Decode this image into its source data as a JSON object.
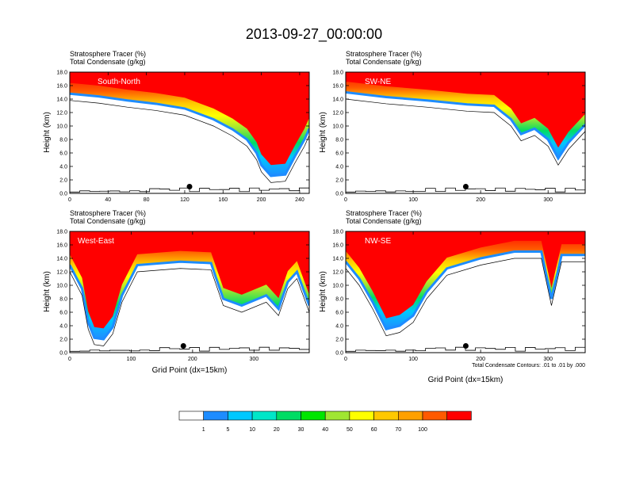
{
  "title": "2013-09-27_00:00:00",
  "colors": {
    "bins": [
      "#ffffff",
      "#1e8cff",
      "#00c8ff",
      "#00e6c8",
      "#00dc64",
      "#00e600",
      "#a0e632",
      "#ffff00",
      "#ffc800",
      "#ffa000",
      "#ff5a00",
      "#ff0000"
    ],
    "contour": "#000000",
    "marker": "#000000"
  },
  "colorbar": {
    "labels": [
      "1",
      "5",
      "10",
      "20",
      "30",
      "40",
      "50",
      "60",
      "70",
      "100"
    ]
  },
  "note": "Total Condensate Contours: .01 to .01 by .000",
  "chart_data": [
    {
      "type": "contour-cross-section",
      "panel_label": "South-North",
      "subtitle_lines": [
        "Stratosphere Tracer   (%)",
        "Total Condensate   (g/kg)"
      ],
      "ylabel": "Height (km)",
      "xlabel": "",
      "ylim": [
        0,
        18
      ],
      "xlim": [
        0,
        250
      ],
      "xticks": [
        "0",
        "40",
        "80",
        "120",
        "160",
        "200",
        "240"
      ],
      "xtick_values": [
        0,
        40,
        80,
        120,
        160,
        200,
        240
      ],
      "yticks": [
        "0.0",
        "2.0",
        "4.0",
        "6.0",
        "8.0",
        "10.0",
        "12.0",
        "14.0",
        "16.0",
        "18.0"
      ],
      "tracer_lower_boundary_km": [
        [
          0,
          14.8
        ],
        [
          30,
          14.4
        ],
        [
          60,
          13.8
        ],
        [
          90,
          13.3
        ],
        [
          120,
          12.6
        ],
        [
          150,
          11.0
        ],
        [
          170,
          9.5
        ],
        [
          185,
          8.0
        ],
        [
          195,
          6.0
        ],
        [
          200,
          4.2
        ],
        [
          210,
          2.6
        ],
        [
          225,
          2.8
        ],
        [
          235,
          5.5
        ],
        [
          245,
          8.0
        ],
        [
          250,
          9.6
        ]
      ],
      "marker": {
        "x": 125,
        "y_km": 1.0
      }
    },
    {
      "type": "contour-cross-section",
      "panel_label": "SW-NE",
      "subtitle_lines": [
        "Stratosphere Tracer   (%)",
        "Total Condensate   (g/kg)"
      ],
      "ylabel": "Height (km)",
      "xlabel": "",
      "ylim": [
        0,
        18
      ],
      "xlim": [
        0,
        355
      ],
      "xticks": [
        "0",
        "100",
        "200",
        "300"
      ],
      "xtick_values": [
        0,
        100,
        200,
        300
      ],
      "yticks": [
        "0.0",
        "2.0",
        "4.0",
        "6.0",
        "8.0",
        "10.0",
        "12.0",
        "14.0",
        "16.0",
        "18.0"
      ],
      "tracer_lower_boundary_km": [
        [
          0,
          15.0
        ],
        [
          60,
          14.3
        ],
        [
          120,
          13.8
        ],
        [
          180,
          13.2
        ],
        [
          220,
          13.0
        ],
        [
          245,
          11.0
        ],
        [
          260,
          8.8
        ],
        [
          280,
          9.6
        ],
        [
          300,
          8.0
        ],
        [
          315,
          5.2
        ],
        [
          330,
          7.5
        ],
        [
          355,
          10.2
        ]
      ],
      "marker": {
        "x": 178,
        "y_km": 1.0
      }
    },
    {
      "type": "contour-cross-section",
      "panel_label": "West-East",
      "subtitle_lines": [
        "Stratosphere Tracer   (%)",
        "Total Condensate   (g/kg)"
      ],
      "ylabel": "Height (km)",
      "xlabel": "Grid Point (dx=15km)",
      "ylim": [
        0,
        18
      ],
      "xlim": [
        0,
        390
      ],
      "xticks": [
        "0",
        "100",
        "200",
        "300"
      ],
      "xtick_values": [
        0,
        100,
        200,
        300
      ],
      "yticks": [
        "0.0",
        "2.0",
        "4.0",
        "6.0",
        "8.0",
        "10.0",
        "12.0",
        "14.0",
        "16.0",
        "18.0"
      ],
      "tracer_lower_boundary_km": [
        [
          0,
          13.0
        ],
        [
          20,
          9.5
        ],
        [
          30,
          4.5
        ],
        [
          40,
          2.2
        ],
        [
          55,
          2.0
        ],
        [
          70,
          3.8
        ],
        [
          85,
          8.5
        ],
        [
          110,
          13.0
        ],
        [
          180,
          13.5
        ],
        [
          230,
          13.3
        ],
        [
          250,
          8.0
        ],
        [
          280,
          7.0
        ],
        [
          320,
          8.5
        ],
        [
          340,
          6.5
        ],
        [
          355,
          10.5
        ],
        [
          370,
          12.0
        ],
        [
          390,
          7.0
        ]
      ],
      "marker": {
        "x": 185,
        "y_km": 1.0
      }
    },
    {
      "type": "contour-cross-section",
      "panel_label": "NW-SE",
      "subtitle_lines": [
        "Stratosphere Tracer   (%)",
        "Total Condensate   (g/kg)"
      ],
      "ylabel": "Height (km)",
      "xlabel": "Grid Point (dx=15km)",
      "ylim": [
        0,
        18
      ],
      "xlim": [
        0,
        355
      ],
      "xticks": [
        "0",
        "100",
        "200",
        "300"
      ],
      "xtick_values": [
        0,
        100,
        200,
        300
      ],
      "yticks": [
        "0.0",
        "2.0",
        "4.0",
        "6.0",
        "8.0",
        "10.0",
        "12.0",
        "14.0",
        "16.0",
        "18.0"
      ],
      "tracer_lower_boundary_km": [
        [
          0,
          13.5
        ],
        [
          20,
          11.0
        ],
        [
          40,
          7.5
        ],
        [
          60,
          3.5
        ],
        [
          80,
          4.0
        ],
        [
          100,
          5.5
        ],
        [
          120,
          9.0
        ],
        [
          150,
          12.5
        ],
        [
          200,
          14.0
        ],
        [
          250,
          15.0
        ],
        [
          290,
          15.0
        ],
        [
          305,
          8.0
        ],
        [
          320,
          14.5
        ],
        [
          355,
          14.5
        ]
      ],
      "marker": {
        "x": 178,
        "y_km": 1.0
      }
    }
  ]
}
